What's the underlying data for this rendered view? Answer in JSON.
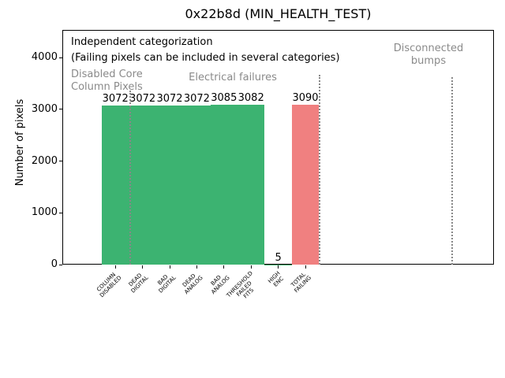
{
  "chart_data": {
    "type": "bar",
    "title": "0x22b8d (MIN_HEALTH_TEST)",
    "ylabel": "Number of pixels",
    "xlabel": "",
    "grid": false,
    "legend": null,
    "categories": [
      [
        "COLUMN",
        "DISABLED"
      ],
      [
        "DEAD",
        "DIGITAL"
      ],
      [
        "BAD",
        "DIGITAL"
      ],
      [
        "DEAD",
        "ANALOG"
      ],
      [
        "BAD",
        "ANALOG"
      ],
      [
        "THRESHOLD",
        "FAILED",
        "FITS"
      ],
      [
        "HIGH",
        "ENC"
      ],
      [
        "TOTAL",
        "FAILING"
      ]
    ],
    "values": [
      3072,
      3072,
      3072,
      3072,
      3085,
      3082,
      5,
      3090
    ],
    "bar_colors": [
      "#3cb371",
      "#3cb371",
      "#3cb371",
      "#3cb371",
      "#3cb371",
      "#3cb371",
      "#3cb371",
      "#f08080"
    ],
    "yticks": [
      0,
      1000,
      2000,
      3000,
      4000
    ],
    "ylim": [
      0,
      4530
    ],
    "annotations": {
      "note_line1": "Independent categorization",
      "note_line2": "(Failing pixels can be included in several categories)",
      "regions": [
        {
          "lines": [
            "Disabled Core",
            "Column Pixels"
          ],
          "x": 90,
          "y": 87,
          "align": "left"
        },
        {
          "lines": [
            "Electrical failures"
          ],
          "x": 295,
          "y": 91,
          "align": "center"
        },
        {
          "lines": [
            "Disconnected",
            "bumps"
          ],
          "x": 543,
          "y": 54,
          "align": "center"
        }
      ],
      "separators": [
        {
          "x": 164.5,
          "y_top": 115
        },
        {
          "x": 404.5,
          "y_top": 95
        },
        {
          "x": 573.0,
          "y_top": 98
        }
      ]
    },
    "colors": {
      "bar_green": "#3cb371",
      "bar_red": "#f08080",
      "annotation_gray": "#8a8a8a",
      "axis_black": "#000000"
    }
  }
}
